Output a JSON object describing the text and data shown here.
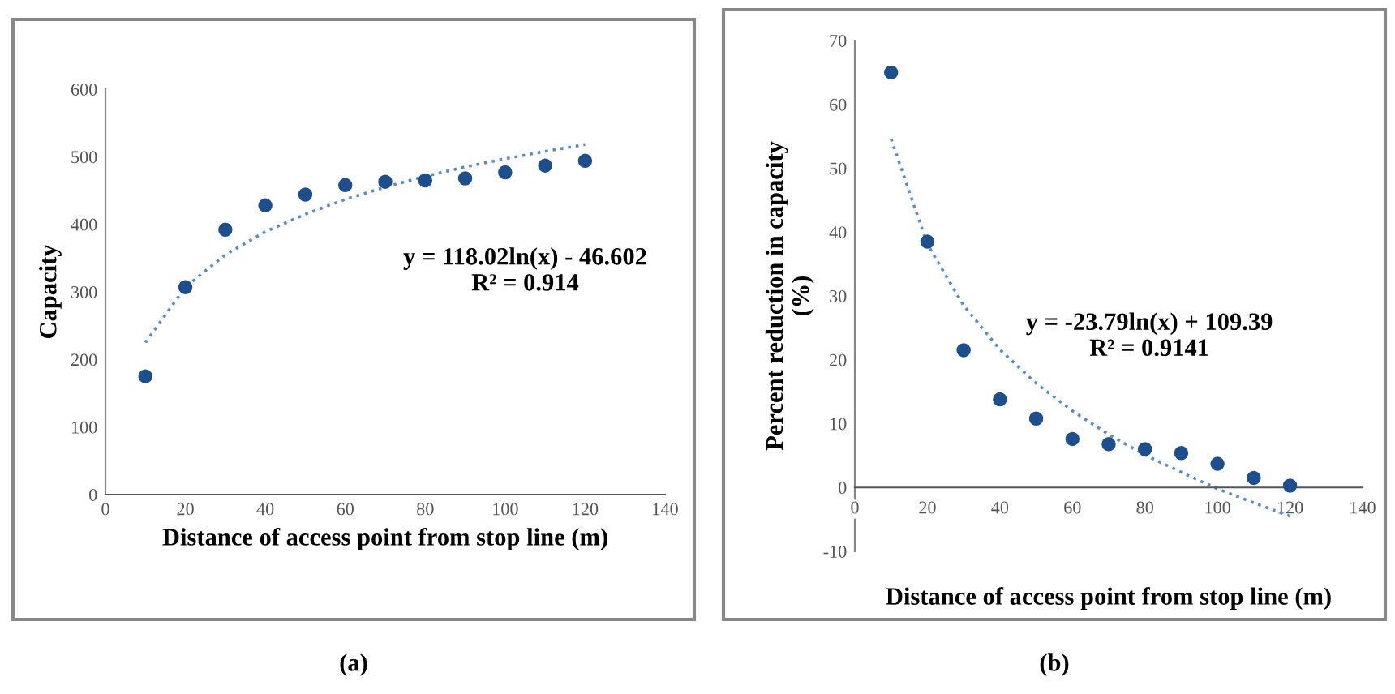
{
  "chart_data": [
    {
      "type": "scatter",
      "xlabel": "Distance of access point from stop line (m)",
      "ylabel": "Capacity",
      "xlim": [
        0,
        140
      ],
      "xticks": [
        0,
        20,
        40,
        60,
        80,
        100,
        120,
        140
      ],
      "ylim": [
        0,
        600
      ],
      "yticks": [
        0,
        100,
        200,
        300,
        400,
        500,
        600
      ],
      "grid": false,
      "legend": false,
      "annotations": [
        "y = 118.02ln(x) - 46.602\nR² = 0.914",
        "(a)"
      ],
      "series": [
        {
          "marker": "circle",
          "color": "#1f4e8c",
          "x": [
            10,
            20,
            30,
            40,
            50,
            60,
            70,
            80,
            90,
            100,
            110,
            120
          ],
          "values": [
            175,
            307,
            392,
            428,
            444,
            458,
            463,
            465,
            468,
            477,
            487,
            494
          ]
        },
        {
          "type": "line",
          "line_style": "dotted",
          "color": "#5b8bc5",
          "x": [
            10,
            20,
            30,
            40,
            50,
            60,
            70,
            80,
            90,
            100,
            110,
            120
          ],
          "values": [
            225,
            307,
            355,
            389,
            415,
            437,
            455,
            471,
            485,
            497,
            508,
            518
          ]
        }
      ]
    },
    {
      "type": "scatter",
      "xlabel": "Distance of access point from stop line (m)",
      "ylabel": "Percent reduction in capacity\n(%)",
      "xlim": [
        0,
        140
      ],
      "xticks": [
        0,
        20,
        40,
        60,
        80,
        100,
        120,
        140
      ],
      "ylim": [
        -10,
        70
      ],
      "yticks": [
        -10,
        0,
        10,
        20,
        30,
        40,
        50,
        60,
        70
      ],
      "grid": false,
      "legend": false,
      "annotations": [
        "y = -23.79ln(x) + 109.39\nR² = 0.9141",
        "(b)"
      ],
      "series": [
        {
          "marker": "circle",
          "color": "#1f4e8c",
          "x": [
            10,
            20,
            30,
            40,
            50,
            60,
            70,
            80,
            90,
            100,
            110,
            120
          ],
          "values": [
            65,
            38.5,
            21.5,
            13.8,
            10.8,
            7.6,
            6.8,
            6.0,
            5.4,
            3.7,
            1.5,
            0.3
          ]
        },
        {
          "type": "line",
          "line_style": "dotted",
          "color": "#5b8bc5",
          "x": [
            10,
            20,
            30,
            40,
            50,
            60,
            70,
            80,
            90,
            100,
            110,
            120
          ],
          "values": [
            54.6,
            38.1,
            28.5,
            21.6,
            16.3,
            12.0,
            8.3,
            5.1,
            2.4,
            -0.2,
            -2.4,
            -4.5
          ]
        }
      ]
    }
  ]
}
